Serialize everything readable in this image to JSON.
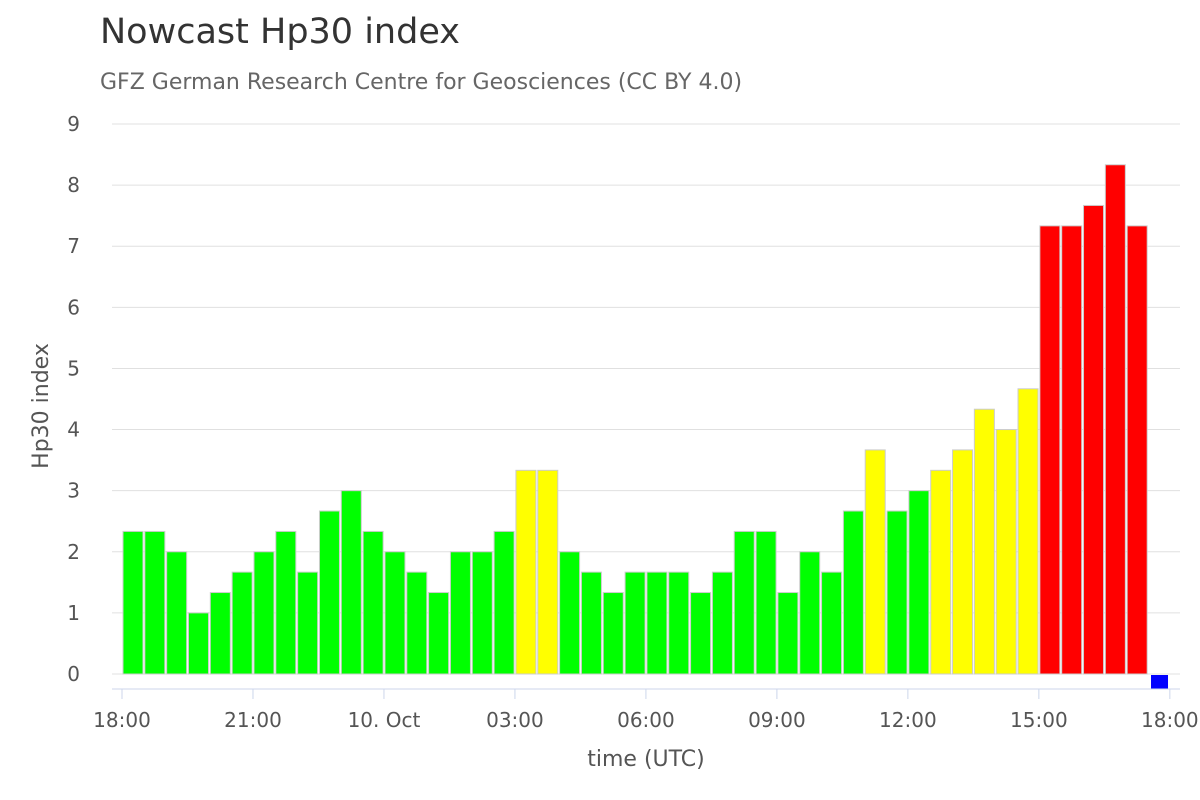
{
  "chart_data": {
    "type": "bar",
    "title": "Nowcast Hp30 index",
    "subtitle": "GFZ German Research Centre for Geosciences (CC BY 4.0)",
    "xlabel": "time (UTC)",
    "ylabel": "Hp30 index",
    "ylim": [
      0,
      9
    ],
    "yticks": [
      "0",
      "1",
      "2",
      "3",
      "4",
      "5",
      "6",
      "7",
      "8",
      "9"
    ],
    "xtick_labels": [
      "18:00",
      "21:00",
      "10. Oct",
      "03:00",
      "06:00",
      "09:00",
      "12:00",
      "15:00",
      "18:00"
    ],
    "x_start": "09 Oct 18:00 UTC",
    "interval_minutes": 30,
    "grid": true,
    "legend": "none",
    "colors": {
      "low": "#00ff00",
      "moderate": "#ffff00",
      "high": "#ff0000",
      "current": "#0000ff",
      "grid": "#e0e0e0",
      "axis": "#ccd6eb"
    },
    "values": [
      2.333,
      2.333,
      2.0,
      1.0,
      1.333,
      1.667,
      2.0,
      2.333,
      1.667,
      2.667,
      3.0,
      2.333,
      2.0,
      1.667,
      1.333,
      2.0,
      2.0,
      2.333,
      3.333,
      3.333,
      2.0,
      1.667,
      1.333,
      1.667,
      1.667,
      1.667,
      1.333,
      1.667,
      2.333,
      2.333,
      1.333,
      2.0,
      1.667,
      2.667,
      3.667,
      2.667,
      3.0,
      3.333,
      3.667,
      4.333,
      4.0,
      4.667,
      7.333,
      7.333,
      7.667,
      8.333,
      7.333,
      0.0
    ],
    "bar_levels": [
      "low",
      "low",
      "low",
      "low",
      "low",
      "low",
      "low",
      "low",
      "low",
      "low",
      "low",
      "low",
      "low",
      "low",
      "low",
      "low",
      "low",
      "low",
      "moderate",
      "moderate",
      "low",
      "low",
      "low",
      "low",
      "low",
      "low",
      "low",
      "low",
      "low",
      "low",
      "low",
      "low",
      "low",
      "low",
      "moderate",
      "low",
      "low",
      "moderate",
      "moderate",
      "moderate",
      "moderate",
      "moderate",
      "high",
      "high",
      "high",
      "high",
      "high",
      "current"
    ]
  }
}
